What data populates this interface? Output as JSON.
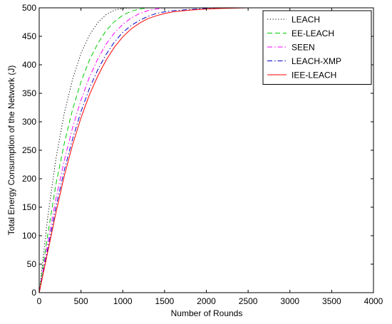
{
  "chart_data": {
    "type": "line",
    "title": "",
    "xlabel": "Number of Rounds",
    "ylabel": "Total Energy Consumption of the Network (J)",
    "xlim": [
      0,
      4000
    ],
    "ylim": [
      0,
      500
    ],
    "xticks": [
      0,
      500,
      1000,
      1500,
      2000,
      2500,
      3000,
      3500,
      4000
    ],
    "yticks": [
      0,
      50,
      100,
      150,
      200,
      250,
      300,
      350,
      400,
      450,
      500
    ],
    "grid": false,
    "legend_position": "top-right",
    "series": [
      {
        "name": "LEACH",
        "color": "#000000",
        "dash": "dotted",
        "x": [
          0,
          100,
          200,
          300,
          400,
          500,
          600,
          700,
          800,
          900,
          1000,
          1100,
          1200,
          1300,
          1500,
          2000,
          2500,
          3000,
          3500,
          4000
        ],
        "y": [
          0,
          130,
          235,
          315,
          375,
          420,
          452,
          474,
          488,
          496,
          499,
          500,
          500,
          500,
          500,
          500,
          500,
          500,
          500,
          500
        ]
      },
      {
        "name": "EE-LEACH",
        "color": "#00cc00",
        "dash": "dashed",
        "x": [
          0,
          100,
          200,
          300,
          400,
          500,
          600,
          700,
          800,
          900,
          1000,
          1100,
          1200,
          1300,
          1400,
          1500,
          2000,
          2500,
          3000,
          3500,
          4000
        ],
        "y": [
          0,
          100,
          190,
          262,
          322,
          370,
          408,
          437,
          460,
          476,
          487,
          494,
          498,
          500,
          500,
          500,
          500,
          500,
          500,
          500,
          500
        ]
      },
      {
        "name": "SEEN",
        "color": "#ff00ff",
        "dash": "dashdot",
        "x": [
          0,
          100,
          200,
          300,
          400,
          500,
          600,
          700,
          800,
          900,
          1000,
          1100,
          1200,
          1300,
          1400,
          1500,
          1600,
          2000,
          2500,
          3000,
          3500,
          4000
        ],
        "y": [
          0,
          85,
          165,
          232,
          290,
          338,
          378,
          410,
          436,
          456,
          471,
          482,
          490,
          495,
          498,
          500,
          500,
          500,
          500,
          500,
          500,
          500
        ]
      },
      {
        "name": "LEACH-XMP",
        "color": "#0000cc",
        "dash": "dashdot",
        "x": [
          0,
          100,
          200,
          300,
          400,
          500,
          600,
          700,
          800,
          900,
          1000,
          1100,
          1200,
          1300,
          1400,
          1500,
          1600,
          1800,
          2000,
          2200,
          2500,
          3000,
          3500,
          4000
        ],
        "y": [
          0,
          75,
          150,
          215,
          270,
          318,
          358,
          391,
          418,
          440,
          457,
          469,
          478,
          485,
          490,
          493,
          495,
          497,
          499,
          500,
          500,
          500,
          500,
          500
        ]
      },
      {
        "name": "IEE-LEACH",
        "color": "#ff0000",
        "dash": "solid",
        "x": [
          0,
          100,
          200,
          300,
          400,
          500,
          600,
          700,
          800,
          900,
          1000,
          1100,
          1200,
          1300,
          1400,
          1500,
          1600,
          1800,
          2000,
          2200,
          2500,
          3000,
          3500,
          4000
        ],
        "y": [
          0,
          70,
          140,
          205,
          260,
          307,
          347,
          380,
          408,
          431,
          449,
          463,
          473,
          481,
          486,
          490,
          493,
          496,
          498,
          499,
          500,
          500,
          500,
          500
        ]
      }
    ]
  }
}
